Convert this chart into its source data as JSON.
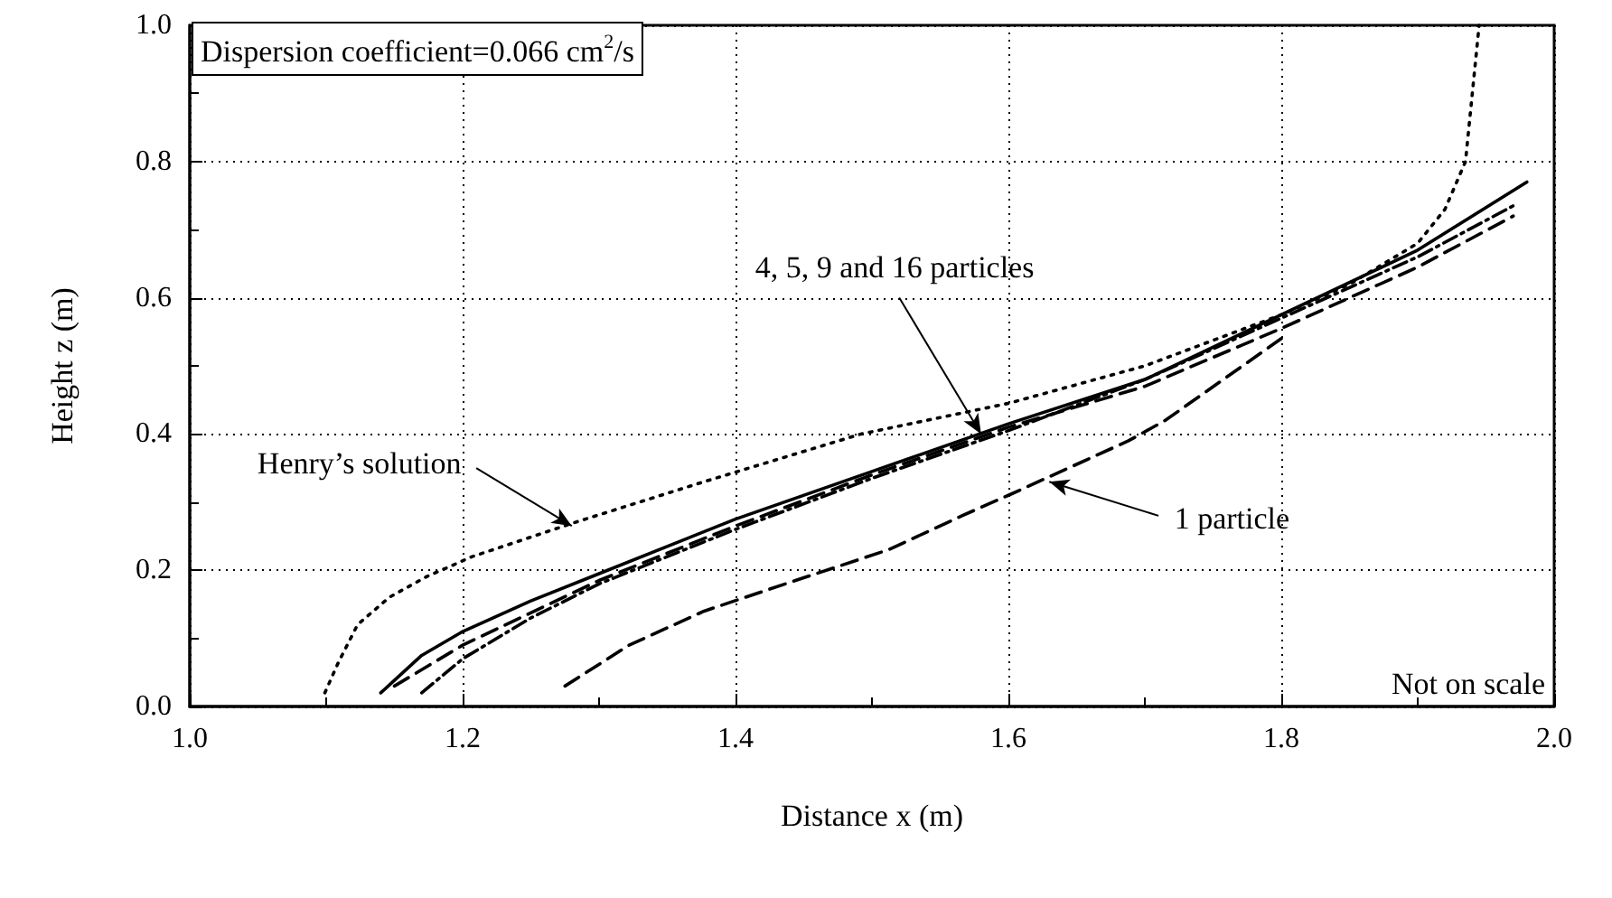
{
  "chart_data": {
    "type": "line",
    "xlabel": "Distance x (m)",
    "ylabel": "Height z (m)",
    "xlim": [
      1.0,
      2.0
    ],
    "xticks": [
      {
        "value": 1.0,
        "label": "1.0"
      },
      {
        "value": 1.2,
        "label": "1.2"
      },
      {
        "value": 1.4,
        "label": "1.4"
      },
      {
        "value": 1.6,
        "label": "1.6"
      },
      {
        "value": 1.8,
        "label": "1.8"
      },
      {
        "value": 2.0,
        "label": "2.0"
      }
    ],
    "ylim": [
      0.0,
      1.0
    ],
    "yticks": [
      {
        "value": 0.0,
        "label": "0.0"
      },
      {
        "value": 0.2,
        "label": "0.2"
      },
      {
        "value": 0.4,
        "label": "0.4"
      },
      {
        "value": 0.6,
        "label": "0.6"
      },
      {
        "value": 0.8,
        "label": "0.8"
      },
      {
        "value": 1.0,
        "label": "1.0"
      }
    ],
    "grid": true,
    "marker": "none",
    "series": [
      {
        "color": "#000000",
        "line_style": "dotted",
        "x": [
          1.099,
          1.109,
          1.123,
          1.146,
          1.173,
          1.207,
          1.282,
          1.377,
          1.492,
          1.6,
          1.7,
          1.8,
          1.85,
          1.9,
          1.92,
          1.935,
          1.94,
          1.945
        ],
        "values": [
          0.02,
          0.065,
          0.12,
          0.16,
          0.19,
          0.22,
          0.27,
          0.33,
          0.4,
          0.445,
          0.5,
          0.575,
          0.62,
          0.68,
          0.73,
          0.8,
          0.9,
          1.0
        ]
      },
      {
        "color": "#000000",
        "line_style": "solid",
        "x": [
          1.14,
          1.17,
          1.2,
          1.25,
          1.3,
          1.4,
          1.5,
          1.6,
          1.7,
          1.8,
          1.9,
          1.98
        ],
        "values": [
          0.02,
          0.075,
          0.11,
          0.155,
          0.195,
          0.275,
          0.345,
          0.415,
          0.48,
          0.575,
          0.67,
          0.77
        ]
      },
      {
        "color": "#000000",
        "line_style": "dashed",
        "x": [
          1.15,
          1.2,
          1.3,
          1.4,
          1.5,
          1.6,
          1.7,
          1.8,
          1.9,
          1.97
        ],
        "values": [
          0.03,
          0.09,
          0.185,
          0.265,
          0.34,
          0.41,
          0.47,
          0.555,
          0.645,
          0.72
        ]
      },
      {
        "color": "#000000",
        "line_style": "dashdot",
        "x": [
          1.17,
          1.2,
          1.25,
          1.3,
          1.4,
          1.5,
          1.6,
          1.7,
          1.8,
          1.9,
          1.97
        ],
        "values": [
          0.02,
          0.07,
          0.13,
          0.18,
          0.26,
          0.335,
          0.405,
          0.48,
          0.57,
          0.66,
          0.735
        ]
      },
      {
        "color": "#000000",
        "line_style": "dashed",
        "x": [
          1.275,
          1.322,
          1.377,
          1.444,
          1.512,
          1.566,
          1.6,
          1.688,
          1.715,
          1.8
        ],
        "values": [
          0.03,
          0.09,
          0.14,
          0.185,
          0.23,
          0.28,
          0.31,
          0.39,
          0.42,
          0.54
        ]
      }
    ],
    "annotations": [
      "Dispersion coefficient=0.066 cm$^{2}$/s",
      {
        "text": "4, 5, 9 and 16 particles",
        "x": 1.58,
        "y": 0.4
      },
      {
        "text": "Henry’s solution",
        "x": 1.28,
        "y": 0.265
      },
      {
        "text": "1 particle",
        "x": 1.63,
        "y": 0.33
      },
      "Not on scale"
    ]
  }
}
